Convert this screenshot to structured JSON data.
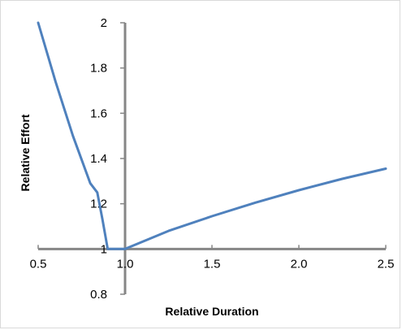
{
  "chart_data": {
    "type": "line",
    "title": "",
    "xlabel": "Relative Duration",
    "ylabel": "Relative Effort",
    "xlim": [
      0.5,
      2.5
    ],
    "ylim": [
      0.8,
      2.0
    ],
    "x_ticks": [
      "0.5",
      "1.0",
      "1.5",
      "2.0",
      "2.5"
    ],
    "y_ticks": [
      "0.8",
      "1",
      "1.2",
      "1.4",
      "1.6",
      "1.8",
      "2"
    ],
    "grid": false,
    "legend": "none",
    "line_color": "#4f81bd",
    "axis_color": "#868686",
    "series": [
      {
        "points": [
          {
            "x": 0.5,
            "y": 2.0
          },
          {
            "x": 0.6,
            "y": 1.74
          },
          {
            "x": 0.7,
            "y": 1.5
          },
          {
            "x": 0.8,
            "y": 1.29
          },
          {
            "x": 0.84,
            "y": 1.25
          },
          {
            "x": 0.87,
            "y": 1.13
          },
          {
            "x": 0.9,
            "y": 1.0
          },
          {
            "x": 1.0,
            "y": 1.0
          },
          {
            "x": 1.25,
            "y": 1.08
          },
          {
            "x": 1.5,
            "y": 1.145
          },
          {
            "x": 1.75,
            "y": 1.205
          },
          {
            "x": 2.0,
            "y": 1.26
          },
          {
            "x": 2.25,
            "y": 1.31
          },
          {
            "x": 2.5,
            "y": 1.355
          }
        ]
      }
    ]
  }
}
